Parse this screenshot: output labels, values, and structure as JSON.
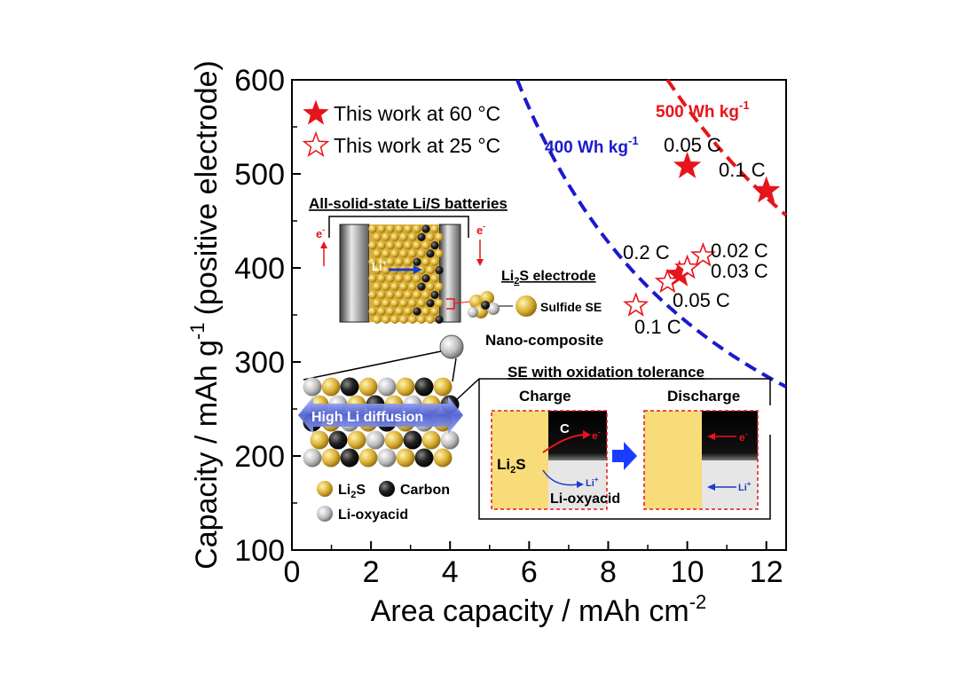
{
  "chart_data": {
    "type": "scatter",
    "xlabel": "Area capacity / mAh cm",
    "xlabel_sup": "-2",
    "ylabel": "Capacity / mAh g",
    "ylabel_sup": "-1",
    "ylabel_suffix": "(positive electrode)",
    "xlim": [
      0,
      12.5
    ],
    "ylim": [
      100,
      600
    ],
    "xticks": [
      "0",
      "2",
      "4",
      "6",
      "8",
      "10",
      "12"
    ],
    "yticks": [
      "100",
      "200",
      "300",
      "400",
      "500",
      "600"
    ],
    "legend": [
      {
        "label": "This work at 60 °C",
        "marker": "filled-star"
      },
      {
        "label": "This work at 25 °C",
        "marker": "open-star"
      }
    ],
    "series": [
      {
        "name": "This work at 60 °C",
        "points": [
          {
            "x": 10.0,
            "y": 508,
            "label": "0.05 C"
          },
          {
            "x": 12.0,
            "y": 482,
            "label": "0.1 C"
          },
          {
            "x": 9.8,
            "y": 393,
            "label": "0.2 C"
          }
        ]
      },
      {
        "name": "This work at 25 °C",
        "points": [
          {
            "x": 10.4,
            "y": 413,
            "label": "0.02 C"
          },
          {
            "x": 10.0,
            "y": 400,
            "label": "0.03 C"
          },
          {
            "x": 9.5,
            "y": 385,
            "label": "0.05 C"
          },
          {
            "x": 8.7,
            "y": 360,
            "label": "0.1 C"
          }
        ]
      }
    ],
    "curves": [
      {
        "label": "400 Wh kg",
        "sup": "-1",
        "color": "#1a1acc",
        "k": 3420
      },
      {
        "label": "500 Wh kg",
        "sup": "-1",
        "color": "#e8141b",
        "k": 5700
      }
    ],
    "colors": {
      "star": "#e8141b",
      "curve_400": "#1a1acc",
      "curve_500": "#e8141b"
    }
  },
  "inset": {
    "title": "All-solid-state Li/S batteries",
    "li_ion": "Li",
    "electron": "e",
    "electrode_label": "Li",
    "electrode_label_sub": "2",
    "electrode_label_suffix": "S electrode",
    "sulfide_se": "Sulfide SE",
    "nano_composite": "Nano-composite",
    "diffusion": "High Li diffusion",
    "legend_li2s": "Li",
    "legend_li2s_sub": "2",
    "legend_li2s_suffix": "S",
    "legend_carbon": "Carbon",
    "legend_oxyacid": "Li-oxyacid",
    "se_title": "SE with oxidation tolerance",
    "charge": "Charge",
    "discharge": "Discharge",
    "c_label": "C",
    "li2s_box": "Li",
    "li2s_box_sub": "2",
    "li2s_box_suffix": "S",
    "li_oxyacid": "Li-oxyacid"
  }
}
